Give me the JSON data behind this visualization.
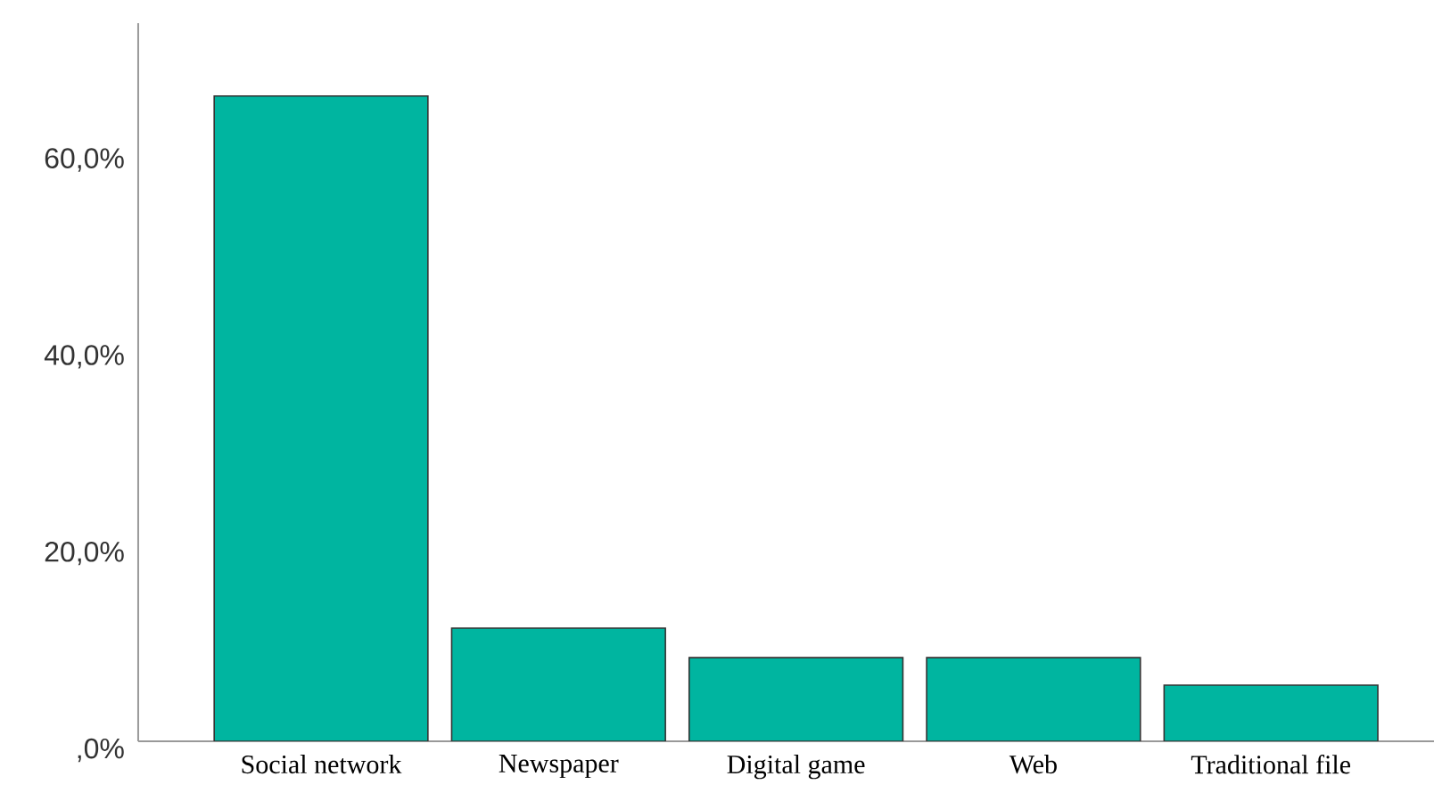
{
  "chart_data": {
    "type": "bar",
    "categories": [
      "Social network",
      "Newspaper",
      "Digital game",
      "Web",
      "Traditional file"
    ],
    "values": [
      65.6,
      11.5,
      8.5,
      8.5,
      5.7
    ],
    "color": "#00b5a0",
    "ylim": [
      0,
      73
    ],
    "yticks": [
      {
        "value": 0,
        "label": ",0%"
      },
      {
        "value": 20,
        "label": "20,0%"
      },
      {
        "value": 40,
        "label": "40,0%"
      },
      {
        "value": 60,
        "label": "60,0%"
      }
    ],
    "grid": false
  }
}
